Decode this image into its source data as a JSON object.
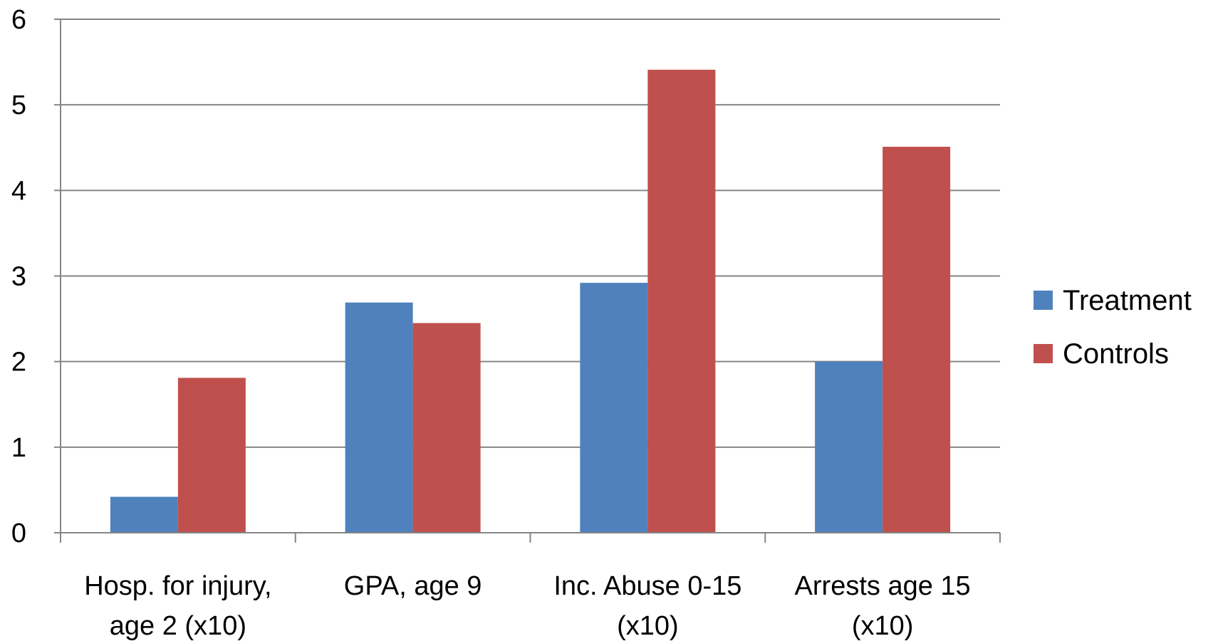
{
  "chart_data": {
    "type": "bar",
    "categories": [
      [
        "Hosp. for injury,",
        "age 2 (x10)"
      ],
      [
        "GPA, age 9"
      ],
      [
        "Inc. Abuse 0-15",
        "(x10)"
      ],
      [
        "Arrests age 15",
        "(x10)"
      ]
    ],
    "series": [
      {
        "name": "Treatment",
        "color": "#4f81bd",
        "values": [
          0.42,
          2.69,
          2.92,
          2.0
        ]
      },
      {
        "name": "Controls",
        "color": "#c0504d",
        "values": [
          1.81,
          2.45,
          5.41,
          4.51
        ]
      }
    ],
    "yticks": [
      "0",
      "1",
      "2",
      "3",
      "4",
      "5",
      "6"
    ],
    "ylim": [
      0,
      6
    ],
    "grid": true,
    "legend_position": "right",
    "title": "",
    "xlabel": "",
    "ylabel": ""
  }
}
